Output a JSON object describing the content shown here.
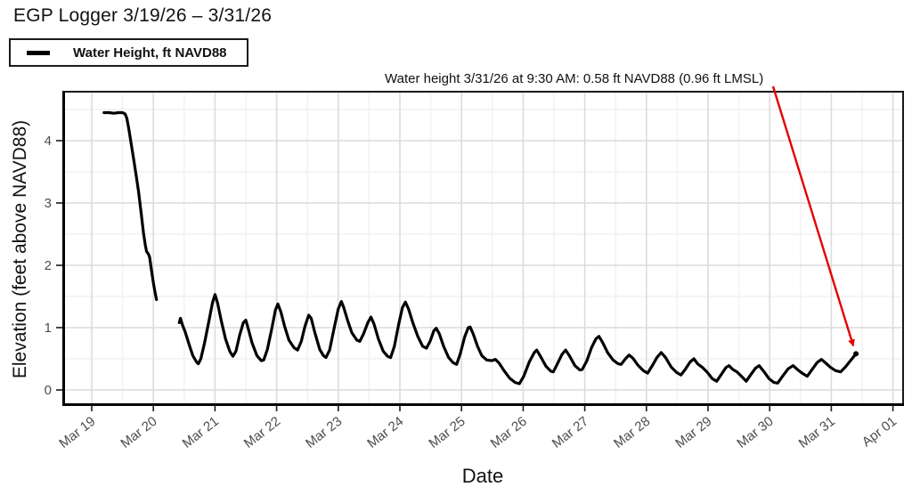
{
  "title": "EGP Logger 3/19/26 – 3/31/26",
  "legend": {
    "label": "Water Height, ft NAVD88",
    "swatch_color": "#000000"
  },
  "annotation": {
    "text": "Water height 3/31/26 at 9:30 AM: 0.58 ft NAVD88 (0.96 ft LMSL)",
    "arrow_color": "#e40000"
  },
  "colors": {
    "line": "#000000",
    "grid_major": "#dcdcdc",
    "grid_minor": "#f1f1f1",
    "tick_text": "#4d4d4d",
    "axis": "#1a1a1a",
    "panel_bg": "#ffffff"
  },
  "chart_data": {
    "type": "line",
    "title": "EGP Logger 3/19/26 – 3/31/26",
    "xlabel": "Date",
    "ylabel": "Elevation (feet above NAVD88)",
    "x_unit": "days since Mar 19, 2026 00:00",
    "x_tick_days": [
      0,
      1,
      2,
      3,
      4,
      5,
      6,
      7,
      8,
      9,
      10,
      11,
      12,
      13
    ],
    "x_tick_labels": [
      "Mar 19",
      "Mar 20",
      "Mar 21",
      "Mar 22",
      "Mar 23",
      "Mar 24",
      "Mar 25",
      "Mar 26",
      "Mar 27",
      "Mar 28",
      "Mar 29",
      "Mar 30",
      "Mar 31",
      "Apr 01"
    ],
    "y_ticks": [
      0,
      1,
      2,
      3,
      4
    ],
    "y_minor_ticks": [
      0.5,
      1.5,
      2.5,
      3.5,
      4.5
    ],
    "x_minor_days": [
      0.5,
      1.5,
      2.5,
      3.5,
      4.5,
      5.5,
      6.5,
      7.5,
      8.5,
      9.5,
      10.5,
      11.5,
      12.5
    ],
    "xlim_days": [
      -0.45,
      13.15
    ],
    "ylim": [
      -0.26,
      4.79
    ],
    "grid": true,
    "legend_position": "top-left-outside",
    "annotation_point": {
      "date": "3/31/26",
      "time": "9:30 AM",
      "value_ft_navd88": 0.58,
      "value_ft_lmsl": 0.96,
      "day": 12.4
    },
    "series": [
      {
        "name": "Water Height, ft NAVD88",
        "color": "#000000",
        "segments": [
          [
            [
              0.2,
              4.45
            ],
            [
              0.28,
              4.45
            ],
            [
              0.36,
              4.44
            ],
            [
              0.44,
              4.45
            ],
            [
              0.5,
              4.45
            ],
            [
              0.54,
              4.43
            ],
            [
              0.57,
              4.36
            ],
            [
              0.6,
              4.2
            ],
            [
              0.64,
              3.95
            ],
            [
              0.68,
              3.7
            ],
            [
              0.72,
              3.45
            ],
            [
              0.76,
              3.18
            ],
            [
              0.8,
              2.85
            ],
            [
              0.84,
              2.52
            ],
            [
              0.87,
              2.32
            ],
            [
              0.89,
              2.22
            ],
            [
              0.92,
              2.18
            ],
            [
              0.94,
              2.13
            ],
            [
              0.97,
              1.92
            ],
            [
              1.0,
              1.72
            ],
            [
              1.03,
              1.55
            ],
            [
              1.05,
              1.45
            ]
          ],
          [
            [
              1.42,
              1.08
            ],
            [
              1.44,
              1.15
            ],
            [
              1.47,
              1.05
            ],
            [
              1.52,
              0.92
            ],
            [
              1.58,
              0.73
            ],
            [
              1.64,
              0.55
            ],
            [
              1.7,
              0.45
            ],
            [
              1.73,
              0.42
            ],
            [
              1.77,
              0.5
            ],
            [
              1.83,
              0.75
            ],
            [
              1.9,
              1.1
            ],
            [
              1.96,
              1.4
            ],
            [
              2.0,
              1.53
            ],
            [
              2.04,
              1.4
            ],
            [
              2.1,
              1.12
            ],
            [
              2.17,
              0.82
            ],
            [
              2.24,
              0.62
            ],
            [
              2.29,
              0.54
            ],
            [
              2.34,
              0.62
            ],
            [
              2.4,
              0.88
            ],
            [
              2.46,
              1.08
            ],
            [
              2.5,
              1.12
            ],
            [
              2.54,
              0.98
            ],
            [
              2.6,
              0.76
            ],
            [
              2.68,
              0.55
            ],
            [
              2.75,
              0.47
            ],
            [
              2.79,
              0.48
            ],
            [
              2.85,
              0.65
            ],
            [
              2.92,
              0.98
            ],
            [
              2.98,
              1.28
            ],
            [
              3.02,
              1.38
            ],
            [
              3.07,
              1.25
            ],
            [
              3.13,
              1.02
            ],
            [
              3.2,
              0.8
            ],
            [
              3.28,
              0.68
            ],
            [
              3.34,
              0.64
            ],
            [
              3.4,
              0.78
            ],
            [
              3.46,
              1.02
            ],
            [
              3.52,
              1.2
            ],
            [
              3.56,
              1.15
            ],
            [
              3.62,
              0.92
            ],
            [
              3.7,
              0.65
            ],
            [
              3.76,
              0.55
            ],
            [
              3.8,
              0.52
            ],
            [
              3.86,
              0.64
            ],
            [
              3.93,
              0.98
            ],
            [
              4.0,
              1.3
            ],
            [
              4.05,
              1.42
            ],
            [
              4.09,
              1.32
            ],
            [
              4.15,
              1.12
            ],
            [
              4.22,
              0.92
            ],
            [
              4.3,
              0.8
            ],
            [
              4.35,
              0.78
            ],
            [
              4.41,
              0.9
            ],
            [
              4.48,
              1.08
            ],
            [
              4.53,
              1.17
            ],
            [
              4.58,
              1.06
            ],
            [
              4.65,
              0.82
            ],
            [
              4.73,
              0.62
            ],
            [
              4.8,
              0.54
            ],
            [
              4.85,
              0.52
            ],
            [
              4.91,
              0.7
            ],
            [
              4.98,
              1.05
            ],
            [
              5.04,
              1.32
            ],
            [
              5.09,
              1.41
            ],
            [
              5.14,
              1.3
            ],
            [
              5.21,
              1.08
            ],
            [
              5.29,
              0.86
            ],
            [
              5.37,
              0.7
            ],
            [
              5.43,
              0.67
            ],
            [
              5.49,
              0.78
            ],
            [
              5.55,
              0.95
            ],
            [
              5.59,
              0.99
            ],
            [
              5.64,
              0.9
            ],
            [
              5.71,
              0.7
            ],
            [
              5.79,
              0.52
            ],
            [
              5.86,
              0.44
            ],
            [
              5.92,
              0.41
            ],
            [
              5.98,
              0.58
            ],
            [
              6.05,
              0.85
            ],
            [
              6.11,
              1.0
            ],
            [
              6.14,
              1.01
            ],
            [
              6.19,
              0.9
            ],
            [
              6.26,
              0.7
            ],
            [
              6.33,
              0.55
            ],
            [
              6.41,
              0.48
            ],
            [
              6.49,
              0.47
            ],
            [
              6.55,
              0.49
            ],
            [
              6.61,
              0.43
            ],
            [
              6.69,
              0.31
            ],
            [
              6.78,
              0.19
            ],
            [
              6.87,
              0.12
            ],
            [
              6.94,
              0.1
            ],
            [
              7.01,
              0.22
            ],
            [
              7.1,
              0.45
            ],
            [
              7.18,
              0.6
            ],
            [
              7.22,
              0.64
            ],
            [
              7.28,
              0.54
            ],
            [
              7.37,
              0.38
            ],
            [
              7.45,
              0.3
            ],
            [
              7.49,
              0.29
            ],
            [
              7.55,
              0.41
            ],
            [
              7.63,
              0.57
            ],
            [
              7.69,
              0.64
            ],
            [
              7.75,
              0.55
            ],
            [
              7.84,
              0.39
            ],
            [
              7.92,
              0.32
            ],
            [
              7.96,
              0.33
            ],
            [
              8.03,
              0.46
            ],
            [
              8.11,
              0.68
            ],
            [
              8.18,
              0.82
            ],
            [
              8.23,
              0.86
            ],
            [
              8.29,
              0.76
            ],
            [
              8.37,
              0.6
            ],
            [
              8.46,
              0.48
            ],
            [
              8.54,
              0.42
            ],
            [
              8.59,
              0.41
            ],
            [
              8.66,
              0.5
            ],
            [
              8.72,
              0.56
            ],
            [
              8.78,
              0.51
            ],
            [
              8.86,
              0.4
            ],
            [
              8.95,
              0.31
            ],
            [
              9.02,
              0.27
            ],
            [
              9.09,
              0.38
            ],
            [
              9.17,
              0.52
            ],
            [
              9.24,
              0.6
            ],
            [
              9.31,
              0.52
            ],
            [
              9.4,
              0.37
            ],
            [
              9.49,
              0.28
            ],
            [
              9.56,
              0.24
            ],
            [
              9.63,
              0.33
            ],
            [
              9.71,
              0.45
            ],
            [
              9.77,
              0.5
            ],
            [
              9.83,
              0.42
            ],
            [
              9.91,
              0.36
            ],
            [
              9.99,
              0.28
            ],
            [
              10.07,
              0.18
            ],
            [
              10.14,
              0.14
            ],
            [
              10.21,
              0.24
            ],
            [
              10.29,
              0.36
            ],
            [
              10.34,
              0.39
            ],
            [
              10.4,
              0.33
            ],
            [
              10.47,
              0.29
            ],
            [
              10.55,
              0.21
            ],
            [
              10.62,
              0.14
            ],
            [
              10.69,
              0.24
            ],
            [
              10.77,
              0.35
            ],
            [
              10.83,
              0.39
            ],
            [
              10.91,
              0.29
            ],
            [
              10.99,
              0.18
            ],
            [
              11.07,
              0.12
            ],
            [
              11.13,
              0.11
            ],
            [
              11.21,
              0.22
            ],
            [
              11.3,
              0.34
            ],
            [
              11.38,
              0.39
            ],
            [
              11.46,
              0.32
            ],
            [
              11.54,
              0.26
            ],
            [
              11.61,
              0.22
            ],
            [
              11.69,
              0.33
            ],
            [
              11.77,
              0.44
            ],
            [
              11.84,
              0.49
            ],
            [
              11.91,
              0.43
            ],
            [
              11.99,
              0.36
            ],
            [
              12.07,
              0.31
            ],
            [
              12.15,
              0.29
            ],
            [
              12.23,
              0.37
            ],
            [
              12.31,
              0.47
            ],
            [
              12.4,
              0.58
            ]
          ]
        ]
      }
    ]
  }
}
